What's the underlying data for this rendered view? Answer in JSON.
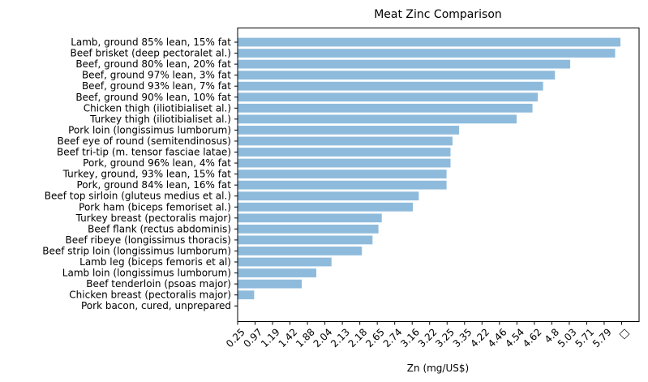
{
  "chart_data": {
    "type": "bar",
    "orientation": "horizontal",
    "title": "Meat Zinc Comparison",
    "xlabel": "Zn (mg/US$)",
    "ylabel": "",
    "categories": [
      "Lamb, ground 85% lean, 15% fat",
      "Beef brisket (deep pectoralet al.)",
      "Beef, ground 80% lean, 20% fat",
      "Beef, ground 97% lean, 3% fat",
      "Beef, ground 93% lean, 7% fat",
      "Beef, ground 90% lean, 10% fat",
      "Chicken thigh (iliotibialiset al.)",
      "Turkey thigh (iliotibialiset al.)",
      "Pork loin (longissimus lumborum)",
      "Beef eye of round (semitendinosus)",
      "Beef tri-tip (m. tensor fasciae latae)",
      "Pork, ground 96% lean, 4% fat",
      "Turkey, ground, 93% lean, 15% fat",
      "Pork, ground 84% lean, 16% fat",
      "Beef top sirloin (gluteus medius et al.)",
      "Pork ham (biceps femoriset al.)",
      "Turkey breast (pectoralis major)",
      "Beef flank (rectus abdominis)",
      "Beef ribeye (longissimus thoracis)",
      "Beef strip loin (longissimus lumborum)",
      "Lamb leg (biceps femoris et al)",
      "Lamb loin (longissimus lumborum)",
      "Beef tenderloin (psoas major)",
      "Chicken breast (pectoralis major)",
      "Pork bacon, cured, unprepared"
    ],
    "values": [
      5.79,
      5.71,
      5.03,
      4.8,
      4.62,
      4.54,
      4.46,
      4.22,
      3.35,
      3.25,
      3.22,
      3.22,
      3.16,
      3.16,
      2.74,
      2.65,
      2.18,
      2.13,
      2.04,
      1.88,
      1.42,
      1.19,
      0.97,
      0.25,
      0
    ],
    "xtick_labels": [
      "0.25",
      "0.97",
      "1.19",
      "1.42",
      "1.88",
      "2.04",
      "2.13",
      "2.18",
      "2.65",
      "2.74",
      "3.16",
      "3.22",
      "3.25",
      "3.35",
      "4.22",
      "4.46",
      "4.54",
      "4.62",
      "4.8",
      "5.03",
      "5.71",
      "5.79",
      "□"
    ],
    "bar_color": "#8ebbdc",
    "grid": false,
    "legend": "none"
  }
}
